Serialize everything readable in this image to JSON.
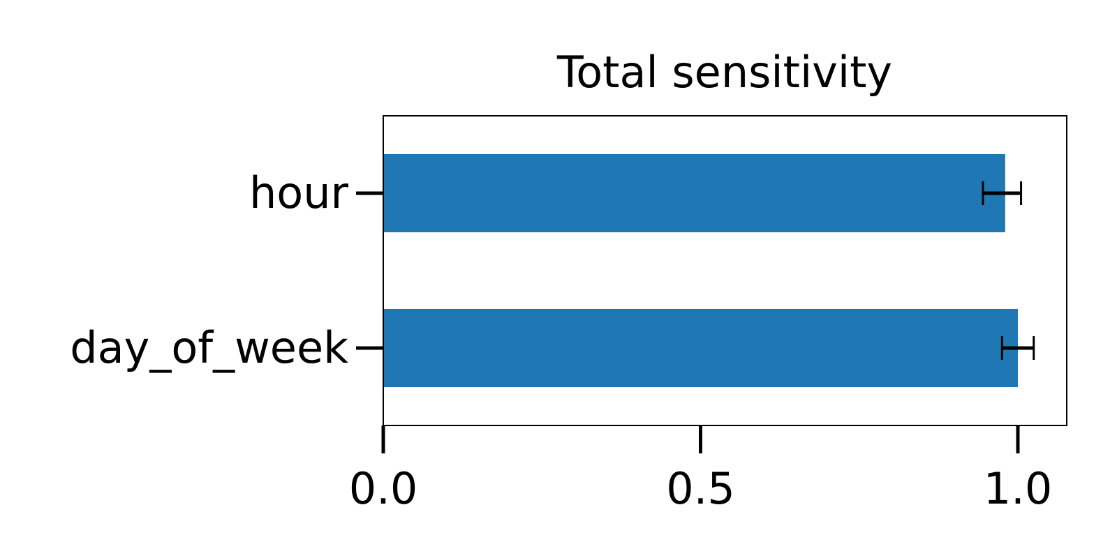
{
  "chart_data": {
    "type": "bar",
    "orientation": "horizontal",
    "title": "Total sensitivity",
    "xlabel": "",
    "ylabel": "",
    "categories": [
      "hour",
      "day_of_week"
    ],
    "values": [
      0.98,
      1.0
    ],
    "error_low": [
      0.945,
      0.975
    ],
    "error_high": [
      1.005,
      1.025
    ],
    "xlim": [
      0.0,
      1.077
    ],
    "xticks": [
      0.0,
      0.5,
      1.0
    ],
    "xtick_labels": [
      "0.0",
      "0.5",
      "1.0"
    ],
    "bar_color": "#1f77b4",
    "errorbar_color": "#000000",
    "grid": false,
    "legend": "none"
  }
}
